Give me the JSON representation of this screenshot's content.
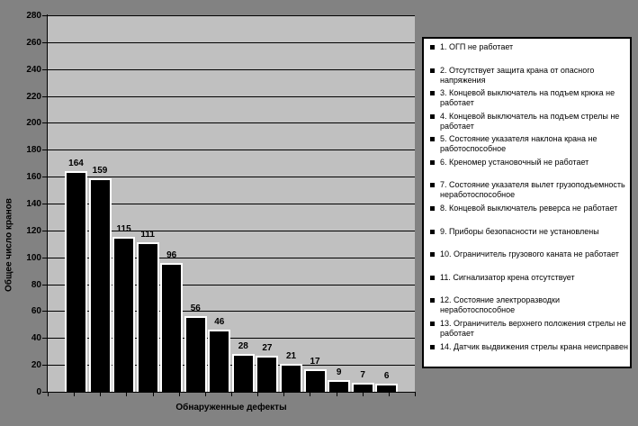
{
  "chart_data": {
    "type": "bar",
    "title": "",
    "xlabel": "Обнаруженные дефекты",
    "ylabel": "Общее число кранов",
    "ylim": [
      0,
      280
    ],
    "ytick_step": 20,
    "grid": true,
    "legend_position": "right",
    "data_labels": true,
    "colors": {
      "bar": "#000000",
      "bar_border": "#ffffff",
      "plot_bg": "#c0c0c0",
      "page_bg": "#828282",
      "legend_bg": "#ffffff",
      "grid_line": "#000000",
      "text": "#000000"
    },
    "categories": [
      "1. ОГП не работает",
      "2. Отсутствует защита крана от опасного напряжения",
      "3. Концевой выключатель на подъем крюка не работает",
      "4. Концевой выключатель на подъем стрелы не работает",
      "5. Состояние указателя наклона крана не работоспособное",
      "6. Креномер установочный не работает",
      "7. Состояние указателя вылет грузоподъемность неработоспособное",
      "8. Концевой выключатель реверса не работает",
      "9. Приборы безопасности не установлены",
      "10. Ограничитель грузового каната не работает",
      "11. Сигнализатор крена отсутствует",
      "12. Состояние электроразводки неработоспособное",
      "13. Ограничитель верхнего положения стрелы не работает",
      "14. Датчик выдвижения стрелы крана неисправен"
    ],
    "values": [
      164,
      159,
      115,
      111,
      96,
      56,
      46,
      28,
      27,
      21,
      17,
      9,
      7,
      6
    ]
  }
}
